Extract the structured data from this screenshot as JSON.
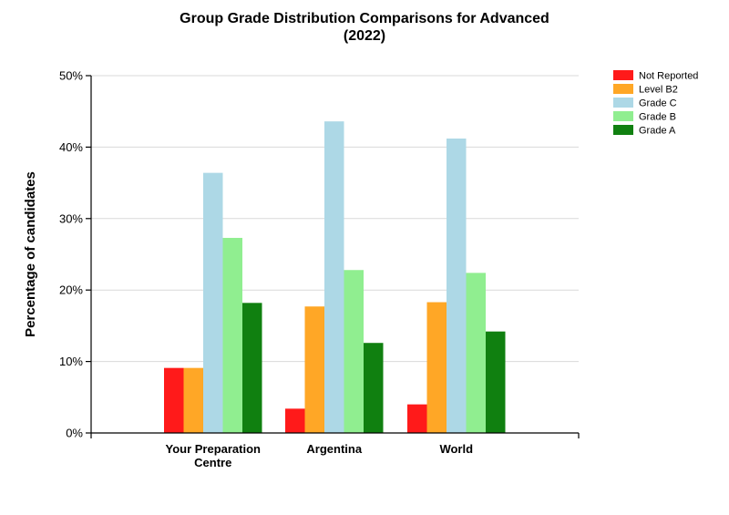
{
  "chart_data": {
    "type": "bar",
    "title_lines": [
      "Group Grade Distribution Comparisons for Advanced",
      "(2022)"
    ],
    "ylabel": "Percentage of candidates",
    "categories": [
      [
        "Your Preparation",
        "Centre"
      ],
      [
        "Argentina"
      ],
      [
        "World"
      ]
    ],
    "ylim": [
      0,
      50
    ],
    "yticks": [
      0,
      10,
      20,
      30,
      40,
      50
    ],
    "ytick_labels": [
      "0%",
      "10%",
      "20%",
      "30%",
      "40%",
      "50%"
    ],
    "grid": true,
    "legend_position": "top-right",
    "series": [
      {
        "name": "Not Reported",
        "color": "#ff1a1a",
        "values": [
          9.1,
          3.4,
          4.0
        ]
      },
      {
        "name": "Level B2",
        "color": "#ffa726",
        "values": [
          9.1,
          17.7,
          18.3
        ]
      },
      {
        "name": "Grade C",
        "color": "#add8e6",
        "values": [
          36.4,
          43.6,
          41.2
        ]
      },
      {
        "name": "Grade B",
        "color": "#90ee90",
        "values": [
          27.3,
          22.8,
          22.4
        ]
      },
      {
        "name": "Grade A",
        "color": "#108010",
        "values": [
          18.2,
          12.6,
          14.2
        ]
      }
    ]
  }
}
